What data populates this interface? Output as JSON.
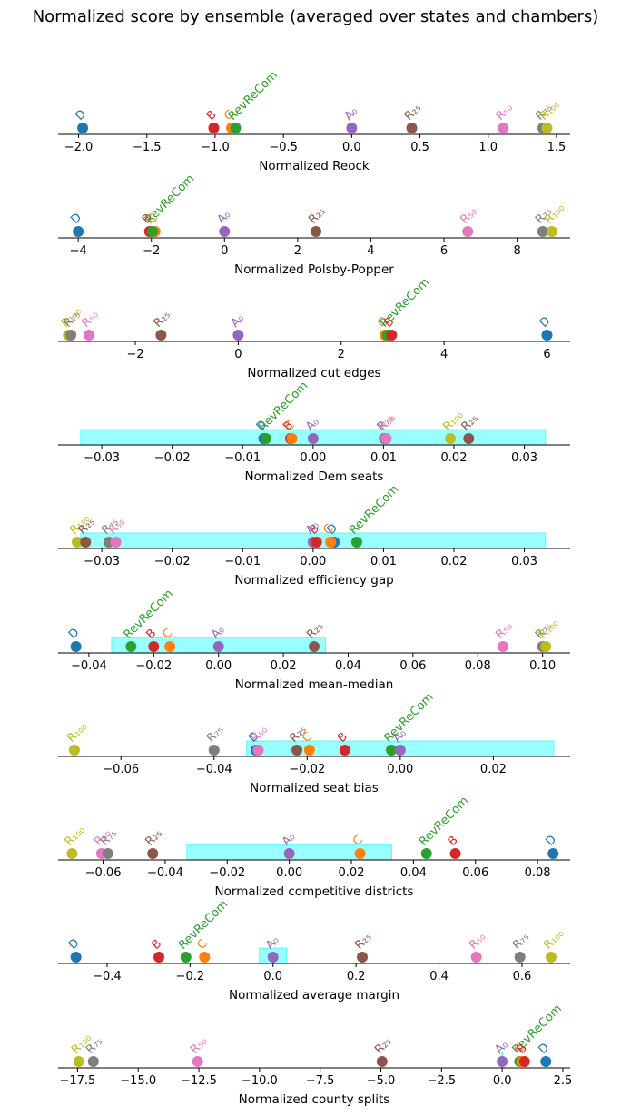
{
  "title": "Normalized score by ensemble (averaged over states and chambers)",
  "colors": {
    "D": "#1f77b4",
    "C": "#ff7f0e",
    "RevReCom": "#2ca02c",
    "B": "#d62728",
    "A0": "#9467bd",
    "R25": "#8c564b",
    "R50": "#e377c2",
    "R75": "#7f7f7f",
    "R100": "#bcbd22",
    "band": "#00ffff"
  },
  "chart_data": [
    {
      "type": "scatter",
      "xlabel": "Normalized Reock",
      "xlim": [
        -2.15,
        1.6
      ],
      "ticks": [
        -2.0,
        -1.5,
        -1.0,
        -0.5,
        0.0,
        0.5,
        1.0,
        1.5
      ],
      "tick_labels": [
        "−2.0",
        "−1.5",
        "−1.0",
        "−0.5",
        "0.0",
        "0.5",
        "1.0",
        "1.5"
      ],
      "band": null,
      "points": [
        {
          "name": "D",
          "label": "D",
          "x": -1.97
        },
        {
          "name": "B",
          "label": "B",
          "x": -1.01
        },
        {
          "name": "C",
          "label": "C",
          "x": -0.88
        },
        {
          "name": "RevReCom",
          "label": "RevReCom",
          "x": -0.85
        },
        {
          "name": "A0",
          "label": "A₀",
          "x": 0.0
        },
        {
          "name": "R25",
          "label": "R₂₅",
          "x": 0.44
        },
        {
          "name": "R50",
          "label": "R₅₀",
          "x": 1.11
        },
        {
          "name": "R75",
          "label": "R₇₅",
          "x": 1.4
        },
        {
          "name": "R100",
          "label": "R₁₀₀",
          "x": 1.43
        }
      ]
    },
    {
      "type": "scatter",
      "xlabel": "Normalized Polsby-Popper",
      "xlim": [
        -4.55,
        9.45
      ],
      "ticks": [
        -4,
        -2,
        0,
        2,
        4,
        6,
        8
      ],
      "tick_labels": [
        "−4",
        "−2",
        "0",
        "2",
        "4",
        "6",
        "8"
      ],
      "band": null,
      "points": [
        {
          "name": "D",
          "label": "D",
          "x": -4.0
        },
        {
          "name": "B",
          "label": "B",
          "x": -2.05
        },
        {
          "name": "C",
          "label": "C",
          "x": -1.9
        },
        {
          "name": "RevReCom",
          "label": "RevReCom",
          "x": -1.97
        },
        {
          "name": "A0",
          "label": "A₀",
          "x": 0.0
        },
        {
          "name": "R25",
          "label": "R₂₅",
          "x": 2.5
        },
        {
          "name": "R50",
          "label": "R₅₀",
          "x": 6.65
        },
        {
          "name": "R75",
          "label": "R₇₅",
          "x": 8.7
        },
        {
          "name": "R100",
          "label": "R₁₀₀",
          "x": 8.95
        }
      ]
    },
    {
      "type": "scatter",
      "xlabel": "Normalized cut edges",
      "xlim": [
        -3.5,
        6.45
      ],
      "ticks": [
        -2,
        0,
        2,
        4,
        6
      ],
      "tick_labels": [
        "−2",
        "0",
        "2",
        "4",
        "6"
      ],
      "band": null,
      "points": [
        {
          "name": "R100",
          "label": "R₁₀₀",
          "x": -3.3
        },
        {
          "name": "R75",
          "label": "R₇₅",
          "x": -3.25
        },
        {
          "name": "R50",
          "label": "R₅₀",
          "x": -2.9
        },
        {
          "name": "R25",
          "label": "R₂₅",
          "x": -1.5
        },
        {
          "name": "A0",
          "label": "A₀",
          "x": 0.0
        },
        {
          "name": "C",
          "label": "C",
          "x": 2.85
        },
        {
          "name": "RevReCom",
          "label": "RevReCom",
          "x": 2.9
        },
        {
          "name": "B",
          "label": "B",
          "x": 2.98
        },
        {
          "name": "D",
          "label": "D",
          "x": 6.0
        }
      ]
    },
    {
      "type": "scatter",
      "xlabel": "Normalized Dem seats",
      "xlim": [
        -0.0362,
        0.0365
      ],
      "ticks": [
        -0.03,
        -0.02,
        -0.01,
        0.0,
        0.01,
        0.02,
        0.03
      ],
      "tick_labels": [
        "−0.03",
        "−0.02",
        "−0.01",
        "0.00",
        "0.01",
        "0.02",
        "0.03"
      ],
      "band": [
        -0.033,
        0.033
      ],
      "points": [
        {
          "name": "D",
          "label": "D",
          "x": -0.007
        },
        {
          "name": "RevReCom",
          "label": "RevReCom",
          "x": -0.0067
        },
        {
          "name": "B",
          "label": "B",
          "x": -0.0032
        },
        {
          "name": "C",
          "label": "C",
          "x": -0.003
        },
        {
          "name": "A0",
          "label": "A₀",
          "x": 0.0
        },
        {
          "name": "R75",
          "label": "R₇₅",
          "x": 0.0101
        },
        {
          "name": "R50",
          "label": "R₅₀",
          "x": 0.0104
        },
        {
          "name": "R100",
          "label": "R₁₀₀",
          "x": 0.0195
        },
        {
          "name": "R25",
          "label": "R₂₅",
          "x": 0.0221
        }
      ]
    },
    {
      "type": "scatter",
      "xlabel": "Normalized efficiency gap",
      "xlim": [
        -0.0362,
        0.0365
      ],
      "ticks": [
        -0.03,
        -0.02,
        -0.01,
        0.0,
        0.01,
        0.02,
        0.03
      ],
      "tick_labels": [
        "−0.03",
        "−0.02",
        "−0.01",
        "0.00",
        "0.01",
        "0.02",
        "0.03"
      ],
      "band": [
        -0.033,
        0.033
      ],
      "points": [
        {
          "name": "R100",
          "label": "R₁₀₀",
          "x": -0.0335
        },
        {
          "name": "R25",
          "label": "R₂₅",
          "x": -0.0323
        },
        {
          "name": "R75",
          "label": "R₇₅",
          "x": -0.029
        },
        {
          "name": "R50",
          "label": "R₅₀",
          "x": -0.028
        },
        {
          "name": "A0",
          "label": "A₀",
          "x": 0.0
        },
        {
          "name": "B",
          "label": "B",
          "x": 0.0005
        },
        {
          "name": "D",
          "label": "D",
          "x": 0.003
        },
        {
          "name": "C",
          "label": "C",
          "x": 0.0025
        },
        {
          "name": "RevReCom",
          "label": "RevReCom",
          "x": 0.0062
        }
      ]
    },
    {
      "type": "scatter",
      "xlabel": "Normalized mean-median",
      "xlim": [
        -0.0495,
        0.1085
      ],
      "ticks": [
        -0.04,
        -0.02,
        0.0,
        0.02,
        0.04,
        0.06,
        0.08,
        0.1
      ],
      "tick_labels": [
        "−0.04",
        "−0.02",
        "0.00",
        "0.02",
        "0.04",
        "0.06",
        "0.08",
        "0.10"
      ],
      "band": [
        -0.033,
        0.033
      ],
      "points": [
        {
          "name": "D",
          "label": "D",
          "x": -0.044
        },
        {
          "name": "RevReCom",
          "label": "RevReCom",
          "x": -0.027
        },
        {
          "name": "B",
          "label": "B",
          "x": -0.02
        },
        {
          "name": "C",
          "label": "C",
          "x": -0.015
        },
        {
          "name": "A0",
          "label": "A₀",
          "x": 0.0
        },
        {
          "name": "R25",
          "label": "R₂₅",
          "x": 0.0295
        },
        {
          "name": "R50",
          "label": "R₅₀",
          "x": 0.0878
        },
        {
          "name": "R75",
          "label": "R₇₅",
          "x": 0.1
        },
        {
          "name": "R100",
          "label": "R₁₀₀",
          "x": 0.101
        }
      ]
    },
    {
      "type": "scatter",
      "xlabel": "Normalized seat bias",
      "xlim": [
        -0.0735,
        0.0365
      ],
      "ticks": [
        -0.06,
        -0.04,
        -0.02,
        0.0,
        0.02
      ],
      "tick_labels": [
        "−0.06",
        "−0.04",
        "−0.02",
        "0.00",
        "0.02"
      ],
      "band": [
        -0.033,
        0.033
      ],
      "points": [
        {
          "name": "R100",
          "label": "R₁₀₀",
          "x": -0.07
        },
        {
          "name": "R75",
          "label": "R₇₅",
          "x": -0.04
        },
        {
          "name": "D",
          "label": "D",
          "x": -0.031
        },
        {
          "name": "R50",
          "label": "R₅₀",
          "x": -0.0305
        },
        {
          "name": "R25",
          "label": "R₂₅",
          "x": -0.0222
        },
        {
          "name": "C",
          "label": "C",
          "x": -0.0195
        },
        {
          "name": "B",
          "label": "B",
          "x": -0.0119
        },
        {
          "name": "RevReCom",
          "label": "RevReCom",
          "x": -0.0019
        },
        {
          "name": "A0",
          "label": "A₀",
          "x": 0.0
        }
      ]
    },
    {
      "type": "scatter",
      "xlabel": "Normalized competitive districts",
      "xlim": [
        -0.0745,
        0.0905
      ],
      "ticks": [
        -0.06,
        -0.04,
        -0.02,
        0.0,
        0.02,
        0.04,
        0.06,
        0.08
      ],
      "tick_labels": [
        "−0.06",
        "−0.04",
        "−0.02",
        "0.00",
        "0.02",
        "0.04",
        "0.06",
        "0.08"
      ],
      "band": [
        -0.033,
        0.033
      ],
      "points": [
        {
          "name": "R100",
          "label": "R₁₀₀",
          "x": -0.07
        },
        {
          "name": "R50",
          "label": "R₅₀",
          "x": -0.0605
        },
        {
          "name": "R75",
          "label": "R₇₅",
          "x": -0.0585
        },
        {
          "name": "R25",
          "label": "R₂₅",
          "x": -0.044
        },
        {
          "name": "A0",
          "label": "A₀",
          "x": 0.0
        },
        {
          "name": "C",
          "label": "C",
          "x": 0.0228
        },
        {
          "name": "RevReCom",
          "label": "RevReCom",
          "x": 0.0442
        },
        {
          "name": "B",
          "label": "B",
          "x": 0.0535
        },
        {
          "name": "D",
          "label": "D",
          "x": 0.085
        }
      ]
    },
    {
      "type": "scatter",
      "xlabel": "Normalized average margin",
      "xlim": [
        -0.518,
        0.716
      ],
      "ticks": [
        -0.4,
        -0.2,
        0.0,
        0.2,
        0.4,
        0.6
      ],
      "tick_labels": [
        "−0.4",
        "−0.2",
        "0.0",
        "0.2",
        "0.4",
        "0.6"
      ],
      "band": [
        -0.033,
        0.033
      ],
      "points": [
        {
          "name": "D",
          "label": "D",
          "x": -0.475
        },
        {
          "name": "B",
          "label": "B",
          "x": -0.275
        },
        {
          "name": "RevReCom",
          "label": "RevReCom",
          "x": -0.21
        },
        {
          "name": "C",
          "label": "C",
          "x": -0.165
        },
        {
          "name": "A0",
          "label": "A₀",
          "x": 0.0
        },
        {
          "name": "R25",
          "label": "R₂₅",
          "x": 0.215
        },
        {
          "name": "R50",
          "label": "R₅₀",
          "x": 0.49
        },
        {
          "name": "R75",
          "label": "R₇₅",
          "x": 0.595
        },
        {
          "name": "R100",
          "label": "R₁₀₀",
          "x": 0.67
        }
      ]
    },
    {
      "type": "scatter",
      "xlabel": "Normalized county splits",
      "xlim": [
        -18.3,
        2.8
      ],
      "ticks": [
        -17.5,
        -15.0,
        -12.5,
        -10.0,
        -7.5,
        -5.0,
        -2.5,
        0.0,
        2.5
      ],
      "tick_labels": [
        "−17.5",
        "−15.0",
        "−12.5",
        "−10.0",
        "−7.5",
        "−5.0",
        "−2.5",
        "0.0",
        "2.5"
      ],
      "band": [
        -0.033,
        0.033
      ],
      "points": [
        {
          "name": "R100",
          "label": "R₁₀₀",
          "x": -17.45
        },
        {
          "name": "R75",
          "label": "R₇₅",
          "x": -16.85
        },
        {
          "name": "R50",
          "label": "R₅₀",
          "x": -12.55
        },
        {
          "name": "R25",
          "label": "R₂₅",
          "x": -4.95
        },
        {
          "name": "A0",
          "label": "A₀",
          "x": 0.0
        },
        {
          "name": "RevReCom",
          "label": "RevReCom",
          "x": 0.72
        },
        {
          "name": "C",
          "label": "C",
          "x": 0.8
        },
        {
          "name": "B",
          "label": "B",
          "x": 0.92
        },
        {
          "name": "D",
          "label": "D",
          "x": 1.8
        }
      ]
    }
  ]
}
